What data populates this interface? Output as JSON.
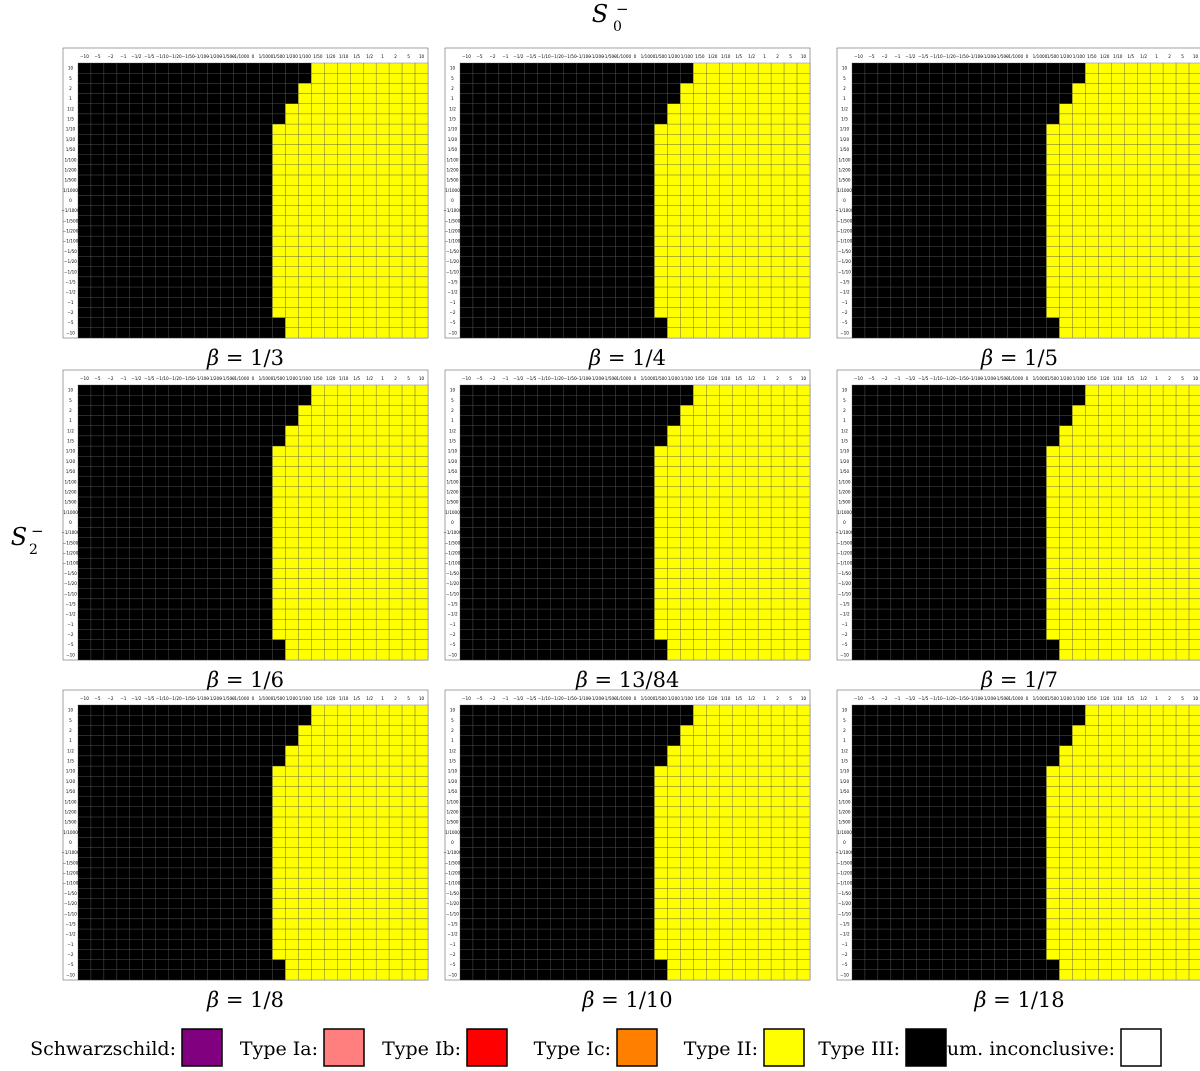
{
  "figure": {
    "x_axis_label": "S",
    "x_axis_sub": "0",
    "x_axis_sup": "−",
    "y_axis_label": "S",
    "y_axis_sub": "2",
    "y_axis_sup": "−"
  },
  "legend": [
    {
      "key": "S",
      "label": "Schwarzschild:",
      "color": "#800080"
    },
    {
      "key": "Ia",
      "label": "Type Ia:",
      "color": "#ff7f7f"
    },
    {
      "key": "Ib",
      "label": "Type Ib:",
      "color": "#ff0000"
    },
    {
      "key": "Ic",
      "label": "Type Ic:",
      "color": "#ff7f00"
    },
    {
      "key": "II",
      "label": "Type II:",
      "color": "#ffff00"
    },
    {
      "key": "III",
      "label": "Type III:",
      "color": "#000000"
    },
    {
      "key": "N",
      "label": "Num. inconclusive:",
      "color": "#ffffff"
    }
  ],
  "chart_data": {
    "type": "heatmap",
    "tick_labels": [
      "−10",
      "−5",
      "−2",
      "−1",
      "−1/2",
      "−1/5",
      "−1/10",
      "−1/20",
      "−1/50",
      "−1/100",
      "−1/200",
      "−1/500",
      "−1/1000",
      "0",
      "1/1000",
      "1/500",
      "1/200",
      "1/100",
      "1/50",
      "1/20",
      "1/10",
      "1/5",
      "1/2",
      "1",
      "2",
      "5",
      "10"
    ],
    "x_ticks_order": "ascending",
    "y_ticks_order": "descending",
    "code_key": {
      "S": "Schwarzschild",
      "a": "Type Ia",
      "b": "Type Ib",
      "c": "Type Ic",
      "Y": "Type II",
      "K": "Type III",
      "W": "Num. inconclusive"
    },
    "panels": [
      {
        "label_prefix": "β = ",
        "label_value": "1/3",
        "rows": [
          "KKKKKKKKKKKKKKKKKKYYYYYYYYY",
          "KKKKKKKKKKKKKKKKKKYYYYYYYYY",
          "KKKKKKKKKKKKKKKKKYYYYYYYYYY",
          "KKKKKKKKKKKKKKKKKYYYYYYYYYY",
          "KKKKKKKKKKKKKKKKYYYYYYYYYYY",
          "KKKKKKKKKKKKKKKKYYYYYYYYYYY",
          "KKKKKKKKKKKKKKKYYYYYYYYYYYY",
          "KKKKKKKKKKKKKKKYYYYYYYYYYYY",
          "KKKKKKKKKKKKKKKYYYYYYYYYYYY",
          "KKKKKKKKKKKKKKKYYYYYYYYYYYY",
          "KKKKKKKKKKKKKKKYYYYYYYYYYYY",
          "KKKKKKKKKKKKKKKYYYYYYYYYYYY",
          "KKKKKKKKKKKKKKKYYYYYYYYYYYY",
          "KKKKKKKKKKKKKKKYYYYYYYYYYYY",
          "KKKKKKKKKKKKKKKYYYYYYYYYYYY",
          "KKKKKKKKKKKKKKKYYYYYYYYYYYY",
          "KKKKKKKKKKKKKKKYYYYYYYYYYYY",
          "KKKKKKKKKKKKKKKYYYYYYYYYYYY",
          "KKKKKKKKKKKKKKKYYYYYYYYYYYY",
          "KKKKKKKKKKKKKKKYYYYYYYYYYYY",
          "KKKKKKKKKKKKKKKYYYYYYYYYYYY",
          "KKKKKKKKKKKKKKKYYYYYYYYYYYY",
          "KKKKKKKKKKKKKKKYYYYYYYYYYYY",
          "KKKKKKKKKKKKKKKYYYYYYYYYYYY",
          "KKKKKKKKKKKKKKKYYYYYYYYYYYY",
          "KKKKKKKKKKKKKKKKYYYYYYYYYYY",
          "KKKKKKKKKKKKKKKKYYYYYYYYYYY"
        ]
      },
      {
        "label_prefix": "β = ",
        "label_value": "1/4",
        "rows": [
          "KKKKKKKKKKKKKKKKKKYYYYYYYYY",
          "KKKKKKKKKKKKKKKKKKYYYYYYYYY",
          "KKKKKKKKKKKKKKKKKYYYYYYYYYY",
          "KKKKKKKKKKKKKKKKKYYYYYYYYYY",
          "KKKKKKKKKKKKKKKKYYYYYYYYYYY",
          "KKKKKKKKKKKKKKKKYYYYYYYYYYY",
          "KKKKKKKKKKKKKKKYYYYYYYYYYYY",
          "KKKKKKKKKKKKKKKYYYYYYYYYYYY",
          "KKKKKKKKKKKKKKKYYYYYYYYYYYY",
          "KKKKKKKKKKKKKKKYYYYYYYYYYYY",
          "KKKKKKKKKKKKKKKYYYYYYYYYYYY",
          "KKKKKKKKKKKKKKKYYYYYYYYYYYY",
          "KKKKKKKKKKKKKKKYYYYYYYYYYYY",
          "KKKKKKKKKKKKKKKYYYYYYYYYYYY",
          "KKKKKKKKKKKKKKKYYYYYYYYYYYY",
          "KKKKKKKKKKKKKKKYYYYYYYYYYYY",
          "KKKKKKKKKKKKKKKYYYYYYYYYYYY",
          "KKKKKKKKKKKKKKKYYYYYYYYYYYY",
          "KKKKKKKKKKKKKKKYYYYYYYYYYYY",
          "KKKKKKKKKKKKKKKYYYYYYYYYYYY",
          "KKKKKKKKKKKKKKKYYYYYYYYYYYY",
          "KKKKKKKKKKKKKKKYYYYYYYYYYYY",
          "KKKKKKKKKKKKKKKYYYYYYYYYYYY",
          "KKKKKKKKKKKKKKKYYYYYYYYYYYY",
          "KKKKKKKKKKKKKKKYYYYYYYYYYYY",
          "KKKKKKKKKKKKKKKKYYYYYYYYYYY",
          "KKKKKKKKKKKKKKKKYYYYYYYYYYY"
        ]
      },
      {
        "label_prefix": "β = ",
        "label_value": "1/5",
        "rows": [
          "KKKKKKKKKKKKKKKKKKYYYYYYYYY",
          "KKKKKKKKKKKKKKKKKKYYYYYYYYY",
          "KKKKKKKKKKKKKKKKKYYYYYYYYYY",
          "KKKKKKKKKKKKKKKKKYYYYYYYYYY",
          "KKKKKKKKKKKKKKKKYYYYYYYYYYY",
          "KKKKKKKKKKKKKKKKYYYYYYYYYYY",
          "KKKKKKKKKKKKKKKYYYYYYYYYYYY",
          "KKKKKKKKKKKKKKKYYYYYYYYYYYY",
          "KKKKKKKKKKKKKKKYYYYYYYYYYYY",
          "KKKKKKKKKKKKKKKYYYYYYYYYYYY",
          "KKKKKKKKKKKKKKKYYYYYYYYYYYY",
          "KKKKKKKKKKKKKKKYYYYYYYYYYYY",
          "KKKKKKKKKKKKKKKYYYYYYYYYYYY",
          "KKKKKKKKKKKKKKKYYYYYYYYYYYY",
          "KKKKKKKKKKKKKKKYYYYYYYYYYYY",
          "KKKKKKKKKKKKKKKYYYYYYYYYYYY",
          "KKKKKKKKKKKKKKKYYYYYYYYYYYY",
          "KKKKKKKKKKKKKKKYYYYYYYYYYYY",
          "KKKKKKKKKKKKKKKYYYYYYYYYYYY",
          "KKKKKKKKKKKKKKKYYYYYYYYYYYY",
          "KKKKKKKKKKKKKKKYYYYYYYYYYYY",
          "KKKKKKKKKKKKKKKYYYYYYYYYYYY",
          "KKKKKKKKKKKKKKKYYYYYYYYYYYY",
          "KKKKKKKKKKKKKKKYYYYYYYYYYYY",
          "KKKKKKKKKKKKKKKYYYYYYYYYYYY",
          "KKKKKKKKKKKKKKKKYYYYYYYYYYY",
          "KKKKKKKKKKKKKKKKYYYYYYYYYYY"
        ]
      },
      {
        "label_prefix": "β = ",
        "label_value": "1/6",
        "rows": [
          "KKKKKKKKKKKKKKKKKKYYYYYYYYY",
          "KKKKKKKKKKKKKKKKKKYYYYYYYYY",
          "KKKKKKKKKKKKKKKKKYYYYYYYYYY",
          "KKKKKKKKKKKKKKKKKYYYYYYYYYY",
          "KKKKKKKKKKKKKKKKYYYYYYYYYYY",
          "KKKKKKKKKKKKKKKKYYYYYYYYYYY",
          "KKKKKKKKKKKKKKKYYYYYYYYYYYY",
          "KKKKKKKKKKKKKKKYYYYYYYYYYYY",
          "KKKKKKKKKKKKKKKYYYYYYYYYYYY",
          "KKKKKKKKKKKKKKKYYYYYYYYYYYY",
          "KKKKKKKKKKKKKKKYYYYYYYYYYYY",
          "KKKKKKKKKKKKKKKYYYYYYYYYYYY",
          "KKKKKKKKKKKKKKKYYYYYYYYYYYY",
          "KKKKKKKKKKKKKKKYYYYYYYYYYYY",
          "KKKKKKKKKKKKKKKYYYYYYYYYYYY",
          "KKKKKKKKKKKKKKKYYYYYYYYYYYY",
          "KKKKKKKKKKKKKKKYYYYYYYYYYYY",
          "KKKKKKKKKKKKKKKYYYYYYYYYYYY",
          "KKKKKKKKKKKKKKKYYYYYYYYYYYY",
          "KKKKKKKKKKKKKKKYYYYYYYYYYYY",
          "KKKKKKKKKKKKKKKYYYYYYYYYYYY",
          "KKKKKKKKKKKKKKKYYYYYYYYYYYY",
          "KKKKKKKKKKKKKKKYYYYYYYYYYYY",
          "KKKKKKKKKKKKKKKYYYYYYYYYYYY",
          "KKKKKKKKKKKKKKKYYYYYYYYYYYY",
          "KKKKKKKKKKKKKKKKYYYYYYYYYYY",
          "KKKKKKKKKKKKKKKKYYYYYYYYYYY"
        ]
      },
      {
        "label_prefix": "β = ",
        "label_value": "13/84",
        "rows": [
          "KKKKKKKKKKKKKKKKKKYYYYYYYYY",
          "KKKKKKKKKKKKKKKKKKYYYYYYYYY",
          "KKKKKKKKKKKKKKKKKYYYYYYYYYY",
          "KKKKKKKKKKKKKKKKKYYYYYYYYYY",
          "KKKKKKKKKKKKKKKKYYYYYYYYYYY",
          "KKKKKKKKKKKKKKKKYYYYYYYYYYY",
          "KKKKKKKKKKKKKKKYYYYYYYYYYYY",
          "KKKKKKKKKKKKKKKYYYYYYYYYYYY",
          "KKKKKKKKKKKKKKKYYYYYYYYYYYY",
          "KKKKKKKKKKKKKKKYYYYYYYYYYYY",
          "KKKKKKKKKKKKKKKYYYYYYYYYYYY",
          "KKKKKKKKKKKKKKKYYYYYYYYYYYY",
          "KKKKKKKKKKKKKKKYYYYYYYYYYYY",
          "KKKKKKKKKKKKKKKYYYYYYYYYYYY",
          "KKKKKKKKKKKKKKKYYYYYYYYYYYY",
          "KKKKKKKKKKKKKKKYYYYYYYYYYYY",
          "KKKKKKKKKKKKKKKYYYYYYYYYYYY",
          "KKKKKKKKKKKKKKKYYYYYYYYYYYY",
          "KKKKKKKKKKKKKKKYYYYYYYYYYYY",
          "KKKKKKKKKKKKKKKYYYYYYYYYYYY",
          "KKKKKKKKKKKKKKKYYYYYYYYYYYY",
          "KKKKKKKKKKKKKKKYYYYYYYYYYYY",
          "KKKKKKKKKKKKKKKYYYYYYYYYYYY",
          "KKKKKKKKKKKKKKKYYYYYYYYYYYY",
          "KKKKKKKKKKKKKKKYYYYYYYYYYYY",
          "KKKKKKKKKKKKKKKKYYYYYYYYYYY",
          "KKKKKKKKKKKKKKKKYYYYYYYYYYY"
        ]
      },
      {
        "label_prefix": "β = ",
        "label_value": "1/7",
        "rows": [
          "KKKKKKKKKKKKKKKKKKYYYYYYYYY",
          "KKKKKKKKKKKKKKKKKKYYYYYYYYY",
          "KKKKKKKKKKKKKKKKKYYYYYYYYYY",
          "KKKKKKKKKKKKKKKKKYYYYYYYYYY",
          "KKKKKKKKKKKKKKKKYYYYYYYYYYY",
          "KKKKKKKKKKKKKKKKYYYYYYYYYYY",
          "KKKKKKKKKKKKKKKYYYYYYYYYYYY",
          "KKKKKKKKKKKKKKKYYYYYYYYYYYY",
          "KKKKKKKKKKKKKKKYYYYYYYYYYYY",
          "KKKKKKKKKKKKKKKYYYYYYYYYYYY",
          "KKKKKKKKKKKKKKKYYYYYYYYYYYY",
          "KKKKKKKKKKKKKKKYYYYYYYYYYYY",
          "KKKKKKKKKKKKKKKYYYYYYYYYYYY",
          "KKKKKKKKKKKKKKKYYYYYYYYYYYY",
          "KKKKKKKKKKKKKKKYYYYYYYYYYYY",
          "KKKKKKKKKKKKKKKYYYYYYYYYYYY",
          "KKKKKKKKKKKKKKKYYYYYYYYYYYY",
          "KKKKKKKKKKKKKKKYYYYYYYYYYYY",
          "KKKKKKKKKKKKKKKYYYYYYYYYYYY",
          "KKKKKKKKKKKKKKKYYYYYYYYYYYY",
          "KKKKKKKKKKKKKKKYYYYYYYYYYYY",
          "KKKKKKKKKKKKKKKYYYYYYYYYYYY",
          "KKKKKKKKKKKKKKKYYYYYYYYYYYY",
          "KKKKKKKKKKKKKKKYYYYYYYYYYYY",
          "KKKKKKKKKKKKKKKYYYYYYYYYYYY",
          "KKKKKKKKKKKKKKKKYYYYYYYYYYY",
          "KKKKKKKKKKKKKKKKYYYYYYYYYYY"
        ]
      },
      {
        "label_prefix": "β = ",
        "label_value": "1/8",
        "rows": [
          "KKKKKKKKKKKKKKKKKKYYYYYYYYY",
          "KKKKKKKKKKKKKKKKKKYYYYYYYYY",
          "KKKKKKKKKKKKKKKKKYYYYYYYYYY",
          "KKKKKKKKKKKKKKKKKYYYYYYYYYY",
          "KKKKKKKKKKKKKKKKYYYYYYYYYYY",
          "KKKKKKKKKKKKKKKKYYYYYYYYYYY",
          "KKKKKKKKKKKKKKKYYYYYYYYYYYY",
          "KKKKKKKKKKKKKKKYYYYYYYYYYYY",
          "KKKKKKKKKKKKKKKYYYYYYYYYYYY",
          "KKKKKKKKKKKKKKKYYYYYYYYYYYY",
          "KKKKKKKKKKKKKKKYYYYYYYYYYYY",
          "KKKKKKKKKKKKKKKYYYYYYYYYYYY",
          "KKKKKKKKKKKKKKKYYYYYYYYYYYY",
          "KKKKKKKKKKKKKKKYYYYYYYYYYYY",
          "KKKKKKKKKKKKKKKYYYYYYYYYYYY",
          "KKKKKKKKKKKKKKKYYYYYYYYYYYY",
          "KKKKKKKKKKKKKKKYYYYYYYYYYYY",
          "KKKKKKKKKKKKKKKYYYYYYYYYYYY",
          "KKKKKKKKKKKKKKKYYYYYYYYYYYY",
          "KKKKKKKKKKKKKKKYYYYYYYYYYYY",
          "KKKKKKKKKKKKKKKYYYYYYYYYYYY",
          "KKKKKKKKKKKKKKKYYYYYYYYYYYY",
          "KKKKKKKKKKKKKKKYYYYYYYYYYYY",
          "KKKKKKKKKKKKKKKYYYYYYYYYYYY",
          "KKKKKKKKKKKKKKKYYYYYYYYYYYY",
          "KKKKKKKKKKKKKKKKYYYYYYYYYYY",
          "KKKKKKKKKKKKKKKKYYYYYYYYYYY"
        ]
      },
      {
        "label_prefix": "β = ",
        "label_value": "1/10",
        "rows": [
          "KKKKKKKKKKKKKKKKKKYYYYYYYYY",
          "KKKKKKKKKKKKKKKKKKYYYYYYYYY",
          "KKKKKKKKKKKKKKKKKYYYYYYYYYY",
          "KKKKKKKKKKKKKKKKKYYYYYYYYYY",
          "KKKKKKKKKKKKKKKKYYYYYYYYYYY",
          "KKKKKKKKKKKKKKKKYYYYYYYYYYY",
          "KKKKKKKKKKKKKKKYYYYYYYYYYYY",
          "KKKKKKKKKKKKKKKYYYYYYYYYYYY",
          "KKKKKKKKKKKKKKKYYYYYYYYYYYY",
          "KKKKKKKKKKKKKKKYYYYYYYYYYYY",
          "KKKKKKKKKKKKKKKYYYYYYYYYYYY",
          "KKKKKKKKKKKKKKKYYYYYYYYYYYY",
          "KKKKKKKKKKKKKKKYYYYYYYYYYYY",
          "KKKKKKKKKKKKKKKYYYYYYYYYYYY",
          "KKKKKKKKKKKKKKKYYYYYYYYYYYY",
          "KKKKKKKKKKKKKKKYYYYYYYYYYYY",
          "KKKKKKKKKKKKKKKYYYYYYYYYYYY",
          "KKKKKKKKKKKKKKKYYYYYYYYYYYY",
          "KKKKKKKKKKKKKKKYYYYYYYYYYYY",
          "KKKKKKKKKKKKKKKYYYYYYYYYYYY",
          "KKKKKKKKKKKKKKKYYYYYYYYYYYY",
          "KKKKKKKKKKKKKKKYYYYYYYYYYYY",
          "KKKKKKKKKKKKKKKYYYYYYYYYYYY",
          "KKKKKKKKKKKKKKKYYYYYYYYYYYY",
          "KKKKKKKKKKKKKKKYYYYYYYYYYYY",
          "KKKKKKKKKKKKKKKKYYYYYYYYYYY",
          "KKKKKKKKKKKKKKKKYYYYYYYYYYY"
        ]
      },
      {
        "label_prefix": "β = ",
        "label_value": "1/18",
        "rows": [
          "KKKKKKKKKKKKKKKKKKYYYYYYYYY",
          "KKKKKKKKKKKKKKKKKKYYYYYYYYY",
          "KKKKKKKKKKKKKKKKKYYYYYYYYYY",
          "KKKKKKKKKKKKKKKKKYYYYYYYYYY",
          "KKKKKKKKKKKKKKKKYYYYYYYYYYY",
          "KKKKKKKKKKKKKKKKYYYYYYYYYYY",
          "KKKKKKKKKKKKKKKYYYYYYYYYYYY",
          "KKKKKKKKKKKKKKKYYYYYYYYYYYY",
          "KKKKKKKKKKKKKKKYYYYYYYYYYYY",
          "KKKKKKKKKKKKKKKYYYYYYYYYYYY",
          "KKKKKKKKKKKKKKKYYYYYYYYYYYY",
          "KKKKKKKKKKKKKKKYYYYYYYYYYYY",
          "KKKKKKKKKKKKKKKYYYYYYYYYYYY",
          "KKKKKKKKKKKKKKKYYYYYYYYYYYY",
          "KKKKKKKKKKKKKKKYYYYYYYYYYYY",
          "KKKKKKKKKKKKKKKYYYYYYYYYYYY",
          "KKKKKKKKKKKKKKKYYYYYYYYYYYY",
          "KKKKKKKKKKKKKKKYYYYYYYYYYYY",
          "KKKKKKKKKKKKKKKYYYYYYYYYYYY",
          "KKKKKKKKKKKKKKKYYYYYYYYYYYY",
          "KKKKKKKKKKKKKKKYYYYYYYYYYYY",
          "KKKKKKKKKKKKKKKYYYYYYYYYYYY",
          "KKKKKKKKKKKKKKKYYYYYYYYYYYY",
          "KKKKKKKKKKKKKKKYYYYYYYYYYYY",
          "KKKKKKKKKKKKKKKYYYYYYYYYYYY",
          "KKKKKKKKKKKKKKKKYYYYYYYYYYY",
          "KKKKKKKKKKKKKKKKYYYYYYYYYYY"
        ]
      }
    ]
  }
}
